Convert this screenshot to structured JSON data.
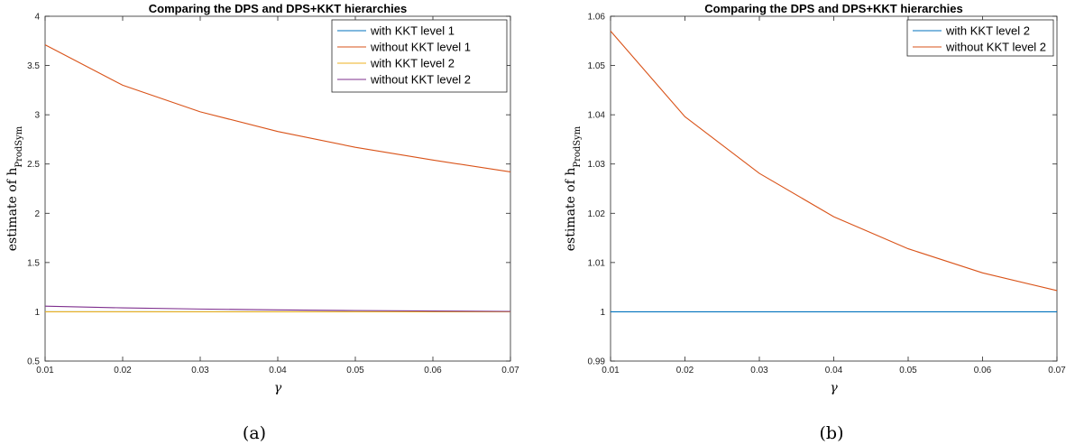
{
  "chart_data": [
    {
      "type": "line",
      "title": "Comparing the DPS and DPS+KKT hierarchies",
      "xlabel": "γ",
      "ylabel": "estimate of h",
      "ylabel_sub": "ProdSym",
      "caption": "(a)",
      "x": [
        0.01,
        0.02,
        0.03,
        0.04,
        0.05,
        0.06,
        0.07
      ],
      "xticks": [
        "0.01",
        "0.02",
        "0.03",
        "0.04",
        "0.05",
        "0.06",
        "0.07"
      ],
      "yticks": [
        0.5,
        1,
        1.5,
        2,
        2.5,
        3,
        3.5,
        4
      ],
      "ytick_labels": [
        "0.5",
        "1",
        "1.5",
        "2",
        "2.5",
        "3",
        "3.5",
        "4"
      ],
      "xlim": [
        0.01,
        0.07
      ],
      "ylim": [
        0.5,
        4
      ],
      "grid": false,
      "legend_position": "top-right",
      "series": [
        {
          "name": "with KKT level 1",
          "color": "#0072BD",
          "values": [
            1.0,
            1.0,
            1.0,
            1.0,
            1.0,
            1.0,
            1.0
          ]
        },
        {
          "name": "without KKT level 1",
          "color": "#D95319",
          "values": [
            3.71,
            3.3,
            3.03,
            2.83,
            2.67,
            2.54,
            2.42
          ]
        },
        {
          "name": "with KKT level 2",
          "color": "#EDB120",
          "values": [
            1.0,
            1.0,
            1.0,
            1.0,
            1.0,
            1.0,
            1.0
          ]
        },
        {
          "name": "without KKT level 2",
          "color": "#7E2F8E",
          "values": [
            1.057,
            1.04,
            1.028,
            1.019,
            1.013,
            1.008,
            1.004
          ]
        }
      ]
    },
    {
      "type": "line",
      "title": "Comparing the DPS and DPS+KKT hierarchies",
      "xlabel": "γ",
      "ylabel": "estimate of h",
      "ylabel_sub": "ProdSym",
      "caption": "(b)",
      "x": [
        0.01,
        0.02,
        0.03,
        0.04,
        0.05,
        0.06,
        0.07
      ],
      "xticks": [
        "0.01",
        "0.02",
        "0.03",
        "0.04",
        "0.05",
        "0.06",
        "0.07"
      ],
      "yticks": [
        0.99,
        1.0,
        1.01,
        1.02,
        1.03,
        1.04,
        1.05,
        1.06
      ],
      "ytick_labels": [
        "0.99",
        "1",
        "1.01",
        "1.02",
        "1.03",
        "1.04",
        "1.05",
        "1.06"
      ],
      "xlim": [
        0.01,
        0.07
      ],
      "ylim": [
        0.99,
        1.06
      ],
      "grid": false,
      "legend_position": "top-right",
      "series": [
        {
          "name": "with KKT level 2",
          "color": "#0072BD",
          "values": [
            1.0,
            1.0,
            1.0,
            1.0,
            1.0,
            1.0,
            1.0
          ]
        },
        {
          "name": "without KKT level 2",
          "color": "#D95319",
          "values": [
            1.057,
            1.0396,
            1.0281,
            1.0193,
            1.0128,
            1.0079,
            1.0043
          ]
        }
      ]
    }
  ]
}
